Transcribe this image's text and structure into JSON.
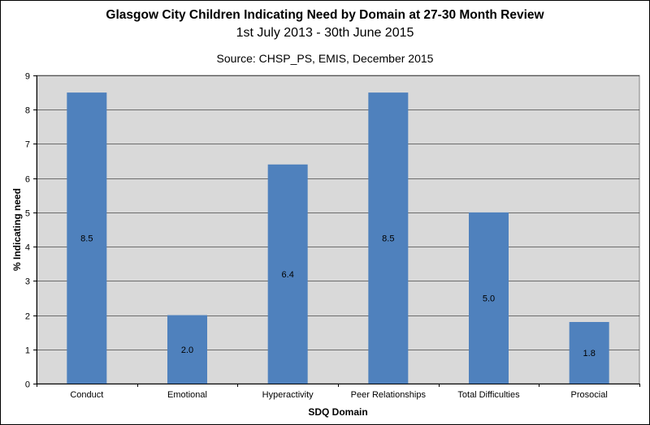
{
  "chart_data": {
    "type": "bar",
    "title": "Glasgow City Children Indicating Need by Domain at 27-30 Month Review",
    "subtitle": "1st July 2013 - 30th June 2015",
    "source": "Source: CHSP_PS, EMIS, December 2015",
    "xlabel": "SDQ Domain",
    "ylabel": "% Indicating need",
    "categories": [
      "Conduct",
      "Emotional",
      "Hyperactivity",
      "Peer Relationships",
      "Total Difficulties",
      "Prosocial"
    ],
    "values": [
      8.5,
      2.0,
      6.4,
      8.5,
      5.0,
      1.8
    ],
    "data_labels": [
      "8.5",
      "2.0",
      "6.4",
      "8.5",
      "5.0",
      "1.8"
    ],
    "ylim": [
      0,
      9
    ],
    "yticks": [
      0,
      1,
      2,
      3,
      4,
      5,
      6,
      7,
      8,
      9
    ],
    "grid": true,
    "legend": "none",
    "colors": {
      "bar": "#4f81bd",
      "plot_background": "#d9d9d9",
      "gridline": "#000000"
    }
  }
}
